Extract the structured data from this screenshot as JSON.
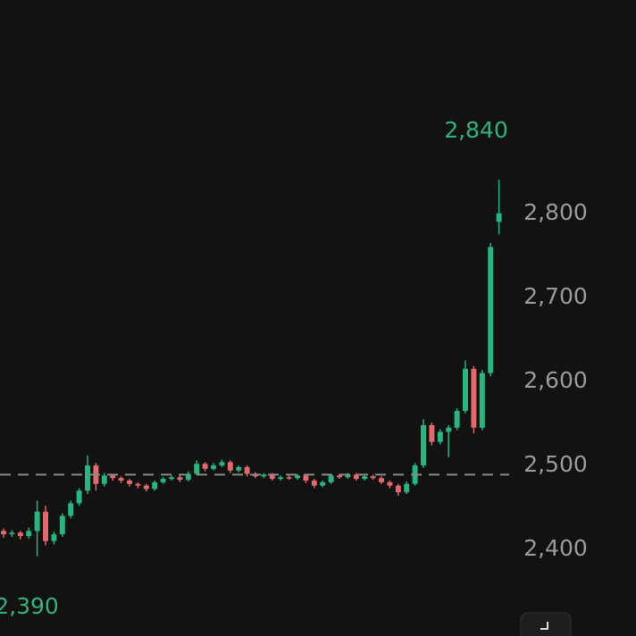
{
  "chart_data": {
    "type": "candlestick",
    "open": [
      2422,
      2418,
      2420,
      2416,
      2422,
      2445,
      2410,
      2418,
      2440,
      2455,
      2470,
      2500,
      2478,
      2488,
      2485,
      2482,
      2478,
      2476,
      2472,
      2480,
      2484,
      2486,
      2483,
      2490,
      2502,
      2496,
      2500,
      2504,
      2494,
      2498,
      2490,
      2487,
      2489,
      2484,
      2486,
      2485,
      2488,
      2482,
      2476,
      2480,
      2488,
      2486,
      2489,
      2484,
      2487,
      2485,
      2480,
      2476,
      2468,
      2478,
      2500,
      2548,
      2528,
      2540,
      2545,
      2565,
      2615,
      2545,
      2610,
      2790
    ],
    "high": [
      2425,
      2423,
      2422,
      2426,
      2458,
      2452,
      2421,
      2443,
      2458,
      2473,
      2512,
      2503,
      2491,
      2490,
      2487,
      2484,
      2480,
      2478,
      2482,
      2486,
      2488,
      2488,
      2493,
      2506,
      2504,
      2503,
      2507,
      2506,
      2500,
      2500,
      2492,
      2491,
      2491,
      2488,
      2488,
      2490,
      2490,
      2484,
      2482,
      2490,
      2490,
      2491,
      2491,
      2489,
      2489,
      2487,
      2482,
      2478,
      2481,
      2503,
      2555,
      2551,
      2543,
      2548,
      2568,
      2625,
      2618,
      2614,
      2765,
      2840
    ],
    "low": [
      2414,
      2415,
      2412,
      2413,
      2392,
      2405,
      2406,
      2415,
      2437,
      2452,
      2466,
      2470,
      2475,
      2482,
      2479,
      2475,
      2473,
      2469,
      2470,
      2478,
      2482,
      2480,
      2481,
      2488,
      2493,
      2494,
      2498,
      2491,
      2492,
      2487,
      2485,
      2485,
      2482,
      2482,
      2483,
      2483,
      2479,
      2473,
      2474,
      2478,
      2484,
      2484,
      2482,
      2482,
      2483,
      2478,
      2473,
      2464,
      2466,
      2476,
      2497,
      2524,
      2525,
      2510,
      2542,
      2562,
      2538,
      2542,
      2606,
      2775
    ],
    "close": [
      2418,
      2420,
      2416,
      2422,
      2445,
      2410,
      2418,
      2440,
      2455,
      2470,
      2500,
      2478,
      2488,
      2485,
      2482,
      2478,
      2476,
      2472,
      2480,
      2484,
      2486,
      2483,
      2490,
      2502,
      2496,
      2500,
      2504,
      2494,
      2498,
      2490,
      2487,
      2489,
      2484,
      2486,
      2485,
      2488,
      2482,
      2476,
      2480,
      2488,
      2486,
      2489,
      2484,
      2487,
      2485,
      2480,
      2476,
      2468,
      2478,
      2500,
      2548,
      2528,
      2540,
      2545,
      2565,
      2615,
      2545,
      2610,
      2760,
      2800
    ],
    "up_color": "#26b67f",
    "down_color": "#e5686a",
    "reference_line": 2489,
    "ylim": [
      2297,
      3054
    ],
    "yticks": [
      {
        "value": 2400,
        "label": "2,400"
      },
      {
        "value": 2500,
        "label": "2,500"
      },
      {
        "value": 2600,
        "label": "2,600"
      },
      {
        "value": 2700,
        "label": "2,700"
      },
      {
        "value": 2800,
        "label": "2,800"
      }
    ],
    "high_label": "2,840",
    "low_label": "2,390"
  }
}
